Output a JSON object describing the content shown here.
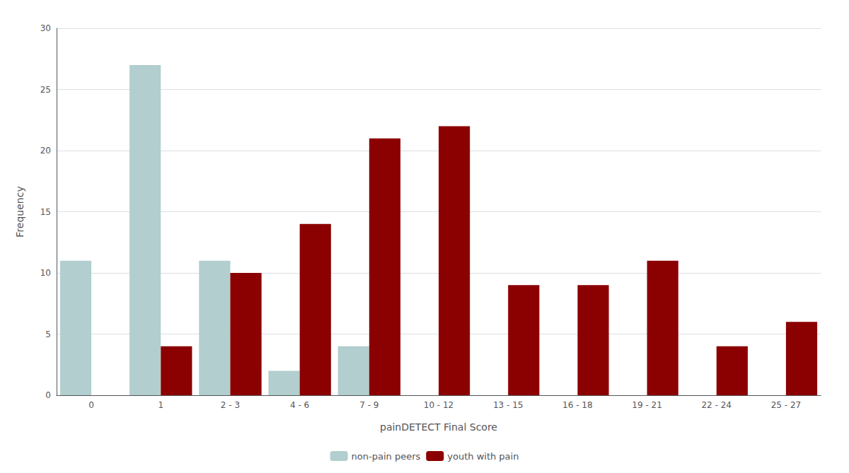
{
  "chart_data": {
    "type": "bar",
    "xlabel": "painDETECT Final Score",
    "ylabel": "Frequency",
    "categories": [
      "0",
      "1",
      "2 - 3",
      "4 - 6",
      "7 - 9",
      "10 - 12",
      "13 - 15",
      "16 - 18",
      "19 - 21",
      "22 - 24",
      "25 - 27"
    ],
    "series": [
      {
        "name": "non-pain peers",
        "color": "#b2cece",
        "values": [
          11,
          27,
          11,
          2,
          4,
          0,
          0,
          0,
          0,
          0,
          0
        ]
      },
      {
        "name": "youth with pain",
        "color": "#8b0000",
        "values": [
          0,
          4,
          10,
          14,
          21,
          22,
          9,
          9,
          11,
          4,
          6
        ]
      }
    ],
    "ylim": [
      0,
      30
    ],
    "yticks": [
      0,
      5,
      10,
      15,
      20,
      25,
      30
    ],
    "grid": true,
    "legend": "bottom"
  }
}
